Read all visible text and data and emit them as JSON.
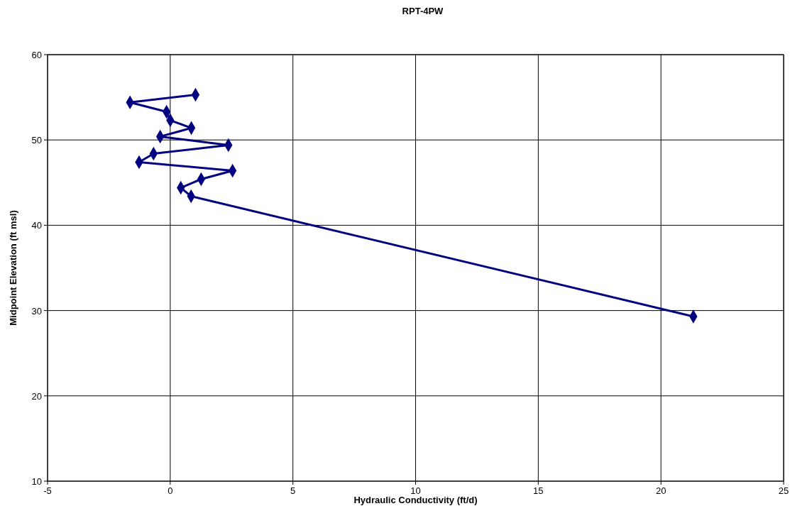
{
  "chart_data": {
    "type": "line",
    "title": "RPT-4PW",
    "xlabel": "Hydraulic Conductivity (ft/d)",
    "ylabel": "Midpoint Elevation (ft msl)",
    "xlim": [
      -5,
      25
    ],
    "xticks": [
      -5,
      0,
      5,
      10,
      15,
      20,
      25
    ],
    "ylim": [
      10,
      60
    ],
    "yticks": [
      10,
      20,
      30,
      40,
      50,
      60
    ],
    "grid": true,
    "marker": "diamond",
    "line_style": "solid",
    "series": [
      {
        "color": "#000080",
        "x": [
          1.03,
          -1.64,
          -0.15,
          0,
          0.86,
          -0.41,
          2.37,
          -0.68,
          -1.27,
          2.54,
          1.26,
          0.43,
          0.85,
          21.32
        ],
        "values": [
          55.3,
          54.4,
          53.3,
          52.3,
          51.4,
          50.4,
          49.4,
          48.4,
          47.4,
          46.4,
          45.4,
          44.4,
          43.4,
          29.3
        ]
      }
    ]
  }
}
